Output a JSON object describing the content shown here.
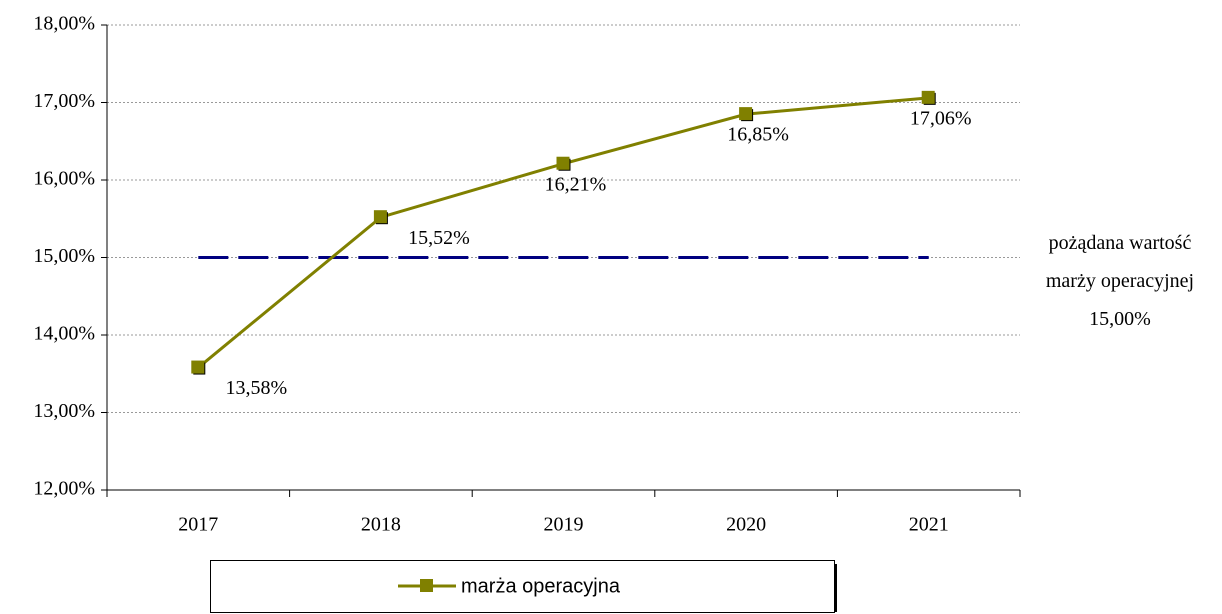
{
  "chart_data": {
    "type": "line",
    "categories": [
      "2017",
      "2018",
      "2019",
      "2020",
      "2021"
    ],
    "series": [
      {
        "name": "marża operacyjna",
        "color": "#808000",
        "values": [
          13.58,
          15.52,
          16.21,
          16.85,
          17.06
        ],
        "value_labels": [
          "13,58%",
          "15,52%",
          "16,21%",
          "16,85%",
          "17,06%"
        ]
      }
    ],
    "ylim": [
      12,
      18
    ],
    "yticks": [
      {
        "value": 12,
        "label": "12,00%"
      },
      {
        "value": 13,
        "label": "13,00%"
      },
      {
        "value": 14,
        "label": "14,00%"
      },
      {
        "value": 15,
        "label": "15,00%"
      },
      {
        "value": 16,
        "label": "16,00%"
      },
      {
        "value": 17,
        "label": "17,00%"
      },
      {
        "value": 18,
        "label": "18,00%"
      }
    ],
    "grid": true,
    "legend": "bottom",
    "reference_line": {
      "value": 15,
      "color": "#000080",
      "label_lines": [
        "pożądana wartość",
        "marży operacyjnej"
      ],
      "value_label": "15,00%"
    }
  }
}
